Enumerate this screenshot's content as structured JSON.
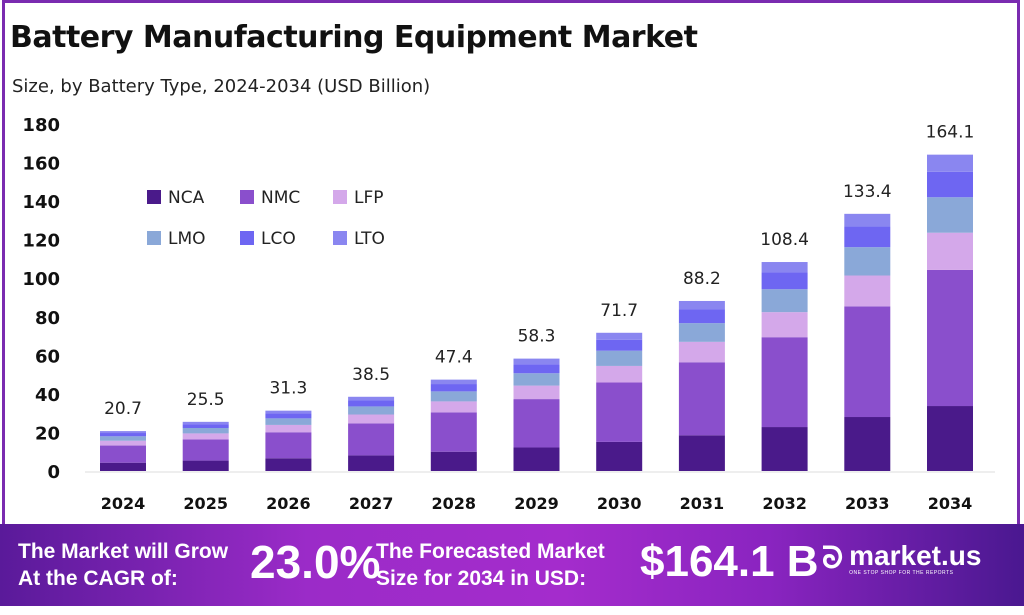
{
  "chart_data": {
    "type": "bar",
    "stacked": true,
    "title": "Battery Manufacturing Equipment Market",
    "subtitle": "Size, by Battery Type, 2024-2034 (USD Billion)",
    "xlabel": "",
    "ylabel": "",
    "ylim": [
      0,
      180
    ],
    "yticks": [
      0,
      20,
      40,
      60,
      80,
      100,
      120,
      140,
      160,
      180
    ],
    "grid": false,
    "legend_position": "top-left",
    "categories": [
      "2024",
      "2025",
      "2026",
      "2027",
      "2028",
      "2029",
      "2030",
      "2031",
      "2032",
      "2033",
      "2034"
    ],
    "totals": [
      "20.7",
      "25.5",
      "31.3",
      "38.5",
      "47.4",
      "58.3",
      "71.7",
      "88.2",
      "108.4",
      "133.4",
      "164.1"
    ],
    "series": [
      {
        "name": "NCA",
        "color": "#4a1a8a",
        "values": [
          4.3,
          5.4,
          6.6,
          8.1,
          10.0,
          12.2,
          15.1,
          18.5,
          22.8,
          28.0,
          33.7
        ]
      },
      {
        "name": "NMC",
        "color": "#8a4fcc",
        "values": [
          8.9,
          11.0,
          13.5,
          16.6,
          20.4,
          25.1,
          30.8,
          37.9,
          46.6,
          57.4,
          70.6
        ]
      },
      {
        "name": "LFP",
        "color": "#d4a8ea",
        "values": [
          2.5,
          3.1,
          3.8,
          4.6,
          5.7,
          7.0,
          8.6,
          10.6,
          13.0,
          16.0,
          19.3
        ]
      },
      {
        "name": "LMO",
        "color": "#8aa8d8",
        "values": [
          2.3,
          2.8,
          3.4,
          4.2,
          5.2,
          6.4,
          7.9,
          9.7,
          11.9,
          14.7,
          18.4
        ]
      },
      {
        "name": "LCO",
        "color": "#6e66f2",
        "values": [
          1.7,
          2.0,
          2.5,
          3.1,
          3.8,
          4.7,
          5.7,
          7.1,
          8.7,
          10.7,
          13.2
        ]
      },
      {
        "name": "LTO",
        "color": "#8a86f0",
        "values": [
          1.0,
          1.2,
          1.5,
          1.9,
          2.3,
          2.9,
          3.6,
          4.4,
          5.4,
          6.6,
          8.9
        ]
      }
    ]
  },
  "footer": {
    "cagr_label_1": "The Market will Grow",
    "cagr_label_2": "At the CAGR of:",
    "cagr_value": "23.0%",
    "forecast_label_1": "The Forecasted Market",
    "forecast_label_2": "Size for 2034 in USD:",
    "forecast_value": "$164.1 B",
    "logo_text": "market.us",
    "logo_tagline": "ONE STOP SHOP FOR THE REPORTS"
  }
}
